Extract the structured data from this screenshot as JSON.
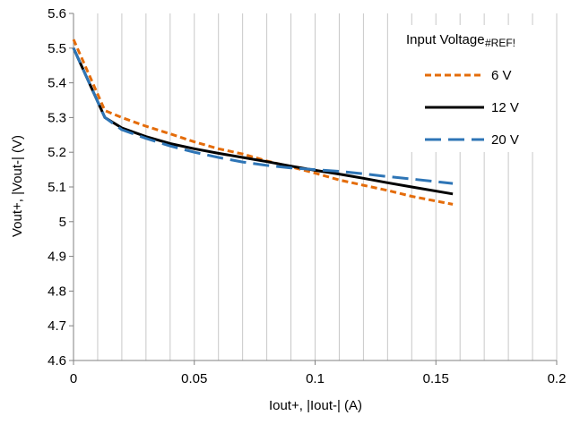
{
  "chart_data": {
    "type": "line",
    "xlabel": "Iout+, |Iout-| (A)",
    "ylabel": "Vout+, |Vout-| (V)",
    "xlim": [
      0,
      0.2
    ],
    "ylim": [
      4.6,
      5.6
    ],
    "xticks": [
      0,
      0.05,
      0.1,
      0.15,
      0.2
    ],
    "xtick_labels": [
      "0",
      "0.05",
      "0.1",
      "0.15",
      "0.2"
    ],
    "yticks": [
      4.6,
      4.7,
      4.8,
      4.9,
      5,
      5.1,
      5.2,
      5.3,
      5.4,
      5.5,
      5.6
    ],
    "ytick_labels": [
      "4.6",
      "4.7",
      "4.8",
      "4.9",
      "5",
      "5.1",
      "5.2",
      "5.3",
      "5.4",
      "5.5",
      "5.6"
    ],
    "grid": {
      "vertical": true,
      "horizontal": false,
      "minor_vertical_step": 0.01
    },
    "legend": {
      "title": "Input Voltage",
      "note": "#REF!",
      "placement": "top-right"
    },
    "series": [
      {
        "name": "6 V",
        "color": "#E46C0A",
        "dash": "short-dash",
        "x": [
          0,
          0.013,
          0.02,
          0.03,
          0.04,
          0.05,
          0.06,
          0.07,
          0.08,
          0.09,
          0.1,
          0.11,
          0.12,
          0.13,
          0.14,
          0.157
        ],
        "y": [
          5.525,
          5.32,
          5.3,
          5.275,
          5.253,
          5.23,
          5.21,
          5.195,
          5.175,
          5.158,
          5.14,
          5.12,
          5.105,
          5.09,
          5.073,
          5.05
        ]
      },
      {
        "name": "12 V",
        "color": "#000000",
        "dash": "solid",
        "x": [
          0,
          0.013,
          0.02,
          0.03,
          0.04,
          0.05,
          0.06,
          0.07,
          0.08,
          0.09,
          0.1,
          0.11,
          0.12,
          0.13,
          0.14,
          0.157
        ],
        "y": [
          5.5,
          5.3,
          5.27,
          5.245,
          5.225,
          5.21,
          5.197,
          5.185,
          5.173,
          5.16,
          5.148,
          5.137,
          5.125,
          5.112,
          5.1,
          5.08
        ]
      },
      {
        "name": "20 V",
        "color": "#2E75B6",
        "dash": "long-dash",
        "x": [
          0,
          0.013,
          0.02,
          0.03,
          0.04,
          0.05,
          0.06,
          0.07,
          0.08,
          0.09,
          0.1,
          0.11,
          0.12,
          0.13,
          0.14,
          0.157
        ],
        "y": [
          5.5,
          5.3,
          5.265,
          5.24,
          5.218,
          5.2,
          5.185,
          5.172,
          5.162,
          5.155,
          5.15,
          5.145,
          5.138,
          5.13,
          5.123,
          5.11
        ]
      }
    ]
  }
}
